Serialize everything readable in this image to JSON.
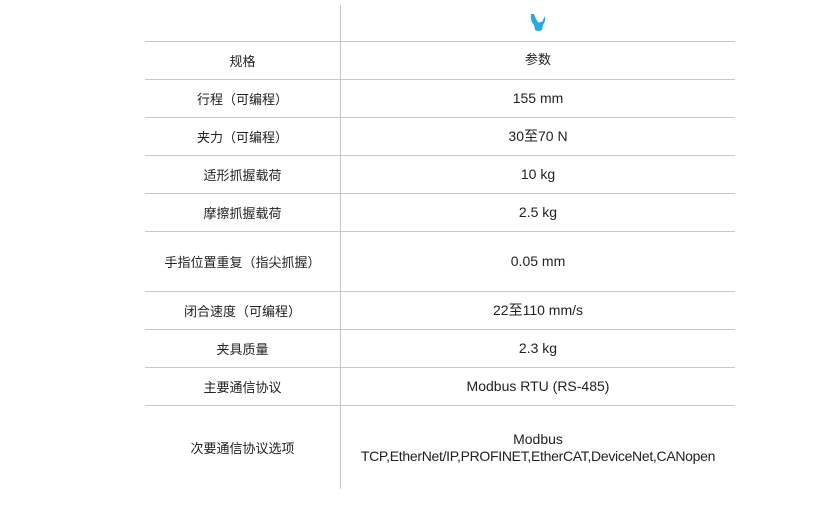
{
  "header": {
    "icon": "gripper-icon",
    "icon_color": "#29a9e0"
  },
  "table": {
    "columns": [
      "规格",
      "参数"
    ],
    "rows": [
      {
        "spec": "行程（可编程）",
        "value": "155 mm"
      },
      {
        "spec": "夹力（可编程）",
        "value": "30至70 N"
      },
      {
        "spec": "适形抓握载荷",
        "value": "10 kg"
      },
      {
        "spec": "摩擦抓握载荷",
        "value": "2.5 kg"
      },
      {
        "spec": "手指位置重复（指尖抓握）",
        "value": "0.05 mm"
      },
      {
        "spec": "闭合速度（可编程）",
        "value": "22至110 mm/s"
      },
      {
        "spec": "夹具质量",
        "value": "2.3 kg"
      },
      {
        "spec": "主要通信协议",
        "value": "Modbus RTU (RS-485)"
      },
      {
        "spec": "次要通信协议选项",
        "value_line1": "Modbus",
        "value_line2": "TCP,EtherNet/IP,PROFINET,EtherCAT,DeviceNet,CANopen"
      }
    ]
  }
}
